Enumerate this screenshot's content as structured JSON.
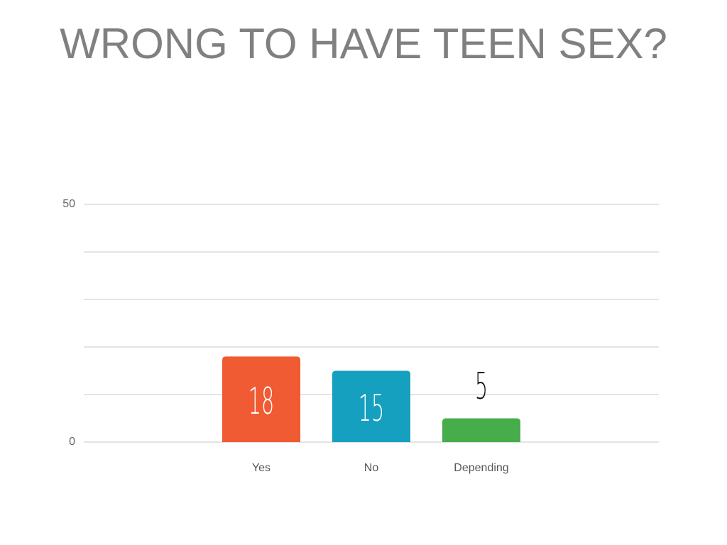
{
  "chart_data": {
    "type": "bar",
    "title": "WRONG TO HAVE TEEN SEX?",
    "categories": [
      "Yes",
      "No",
      "Depending"
    ],
    "values": [
      18,
      15,
      5
    ],
    "colors": [
      "#f05b33",
      "#15a0bf",
      "#47ad4b"
    ],
    "ylim": [
      0,
      50
    ],
    "yticks": [
      0,
      50
    ],
    "grid_yticks": [
      0,
      10,
      20,
      30,
      40,
      50
    ],
    "grid": true
  }
}
